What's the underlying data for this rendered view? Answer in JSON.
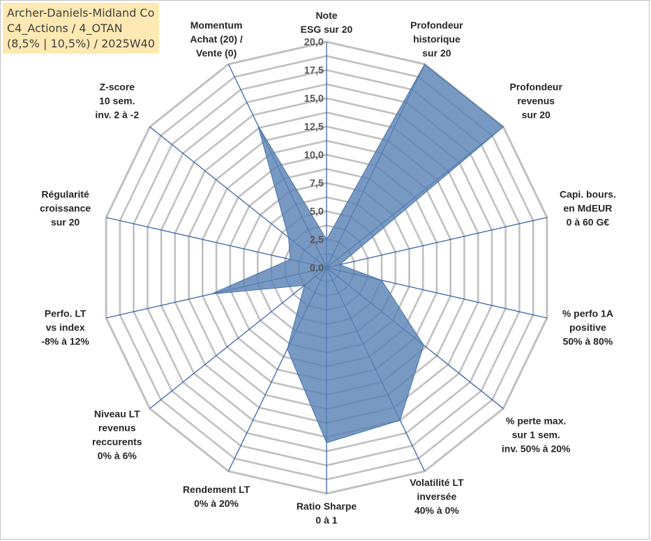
{
  "title_lines": [
    "Archer-Daniels-Midland Co",
    "C4_Actions / 4_OTAN",
    "(8,5% | 10,5%) / 2025W40"
  ],
  "chart_data": {
    "type": "radar",
    "title": "Archer-Daniels-Midland Co — C4_Actions / 4_OTAN (8,5% | 10,5%) / 2025W40",
    "axes": [
      {
        "label": [
          "Note",
          "ESG sur 20"
        ],
        "value": 2.5
      },
      {
        "label": [
          "Profondeur",
          "historique",
          "sur 20"
        ],
        "value": 20.0
      },
      {
        "label": [
          "Profondeur",
          "revenus",
          "sur 20"
        ],
        "value": 20.0
      },
      {
        "label": [
          "Capi. bours.",
          "en MdEUR",
          "0 à 60 G€"
        ],
        "value": 1.2
      },
      {
        "label": [
          "% perfo 1A",
          "positive",
          "50% à 80%"
        ],
        "value": 5.0
      },
      {
        "label": [
          "% perte max.",
          "sur 1 sem.",
          "inv. 50% à 20%"
        ],
        "value": 11.0
      },
      {
        "label": [
          "Volatilité LT",
          "inversée",
          "40% à 0%"
        ],
        "value": 15.0
      },
      {
        "label": [
          "Ratio Sharpe",
          "0 à 1"
        ],
        "value": 15.5
      },
      {
        "label": [
          "Rendement LT",
          "0% à 20%"
        ],
        "value": 8.0
      },
      {
        "label": [
          "Niveau LT",
          "revenus",
          "reccurents",
          "0% à 6%"
        ],
        "value": 2.5
      },
      {
        "label": [
          "Perfo. LT",
          "vs index",
          "-8% à 12%"
        ],
        "value": 10.5
      },
      {
        "label": [
          "Régularité",
          "croissance",
          "sur 20"
        ],
        "value": 3.3
      },
      {
        "label": [
          "Z-score",
          "10 sem.",
          "inv. 2 à -2"
        ],
        "value": 4.3
      },
      {
        "label": [
          "Momentum",
          "Achat (20) /",
          "Vente (0)"
        ],
        "value": 14.0
      }
    ],
    "rmin": 0,
    "rmax": 20,
    "ticks": [
      "0,0",
      "2,5",
      "5,0",
      "7,5",
      "10,0",
      "12,5",
      "15,0",
      "17,5",
      "20,0"
    ],
    "tick_values": [
      0,
      2.5,
      5,
      7.5,
      10,
      12.5,
      15,
      17.5,
      20
    ],
    "grid": true,
    "legend": "none",
    "colors": {
      "fill": "#5a82b5",
      "fill_opacity": 0.82,
      "stroke": "#4a72a8",
      "spoke": "#2e5aa6",
      "grid": "#c0c0c0",
      "title_bg": "#ffe9b3"
    }
  }
}
